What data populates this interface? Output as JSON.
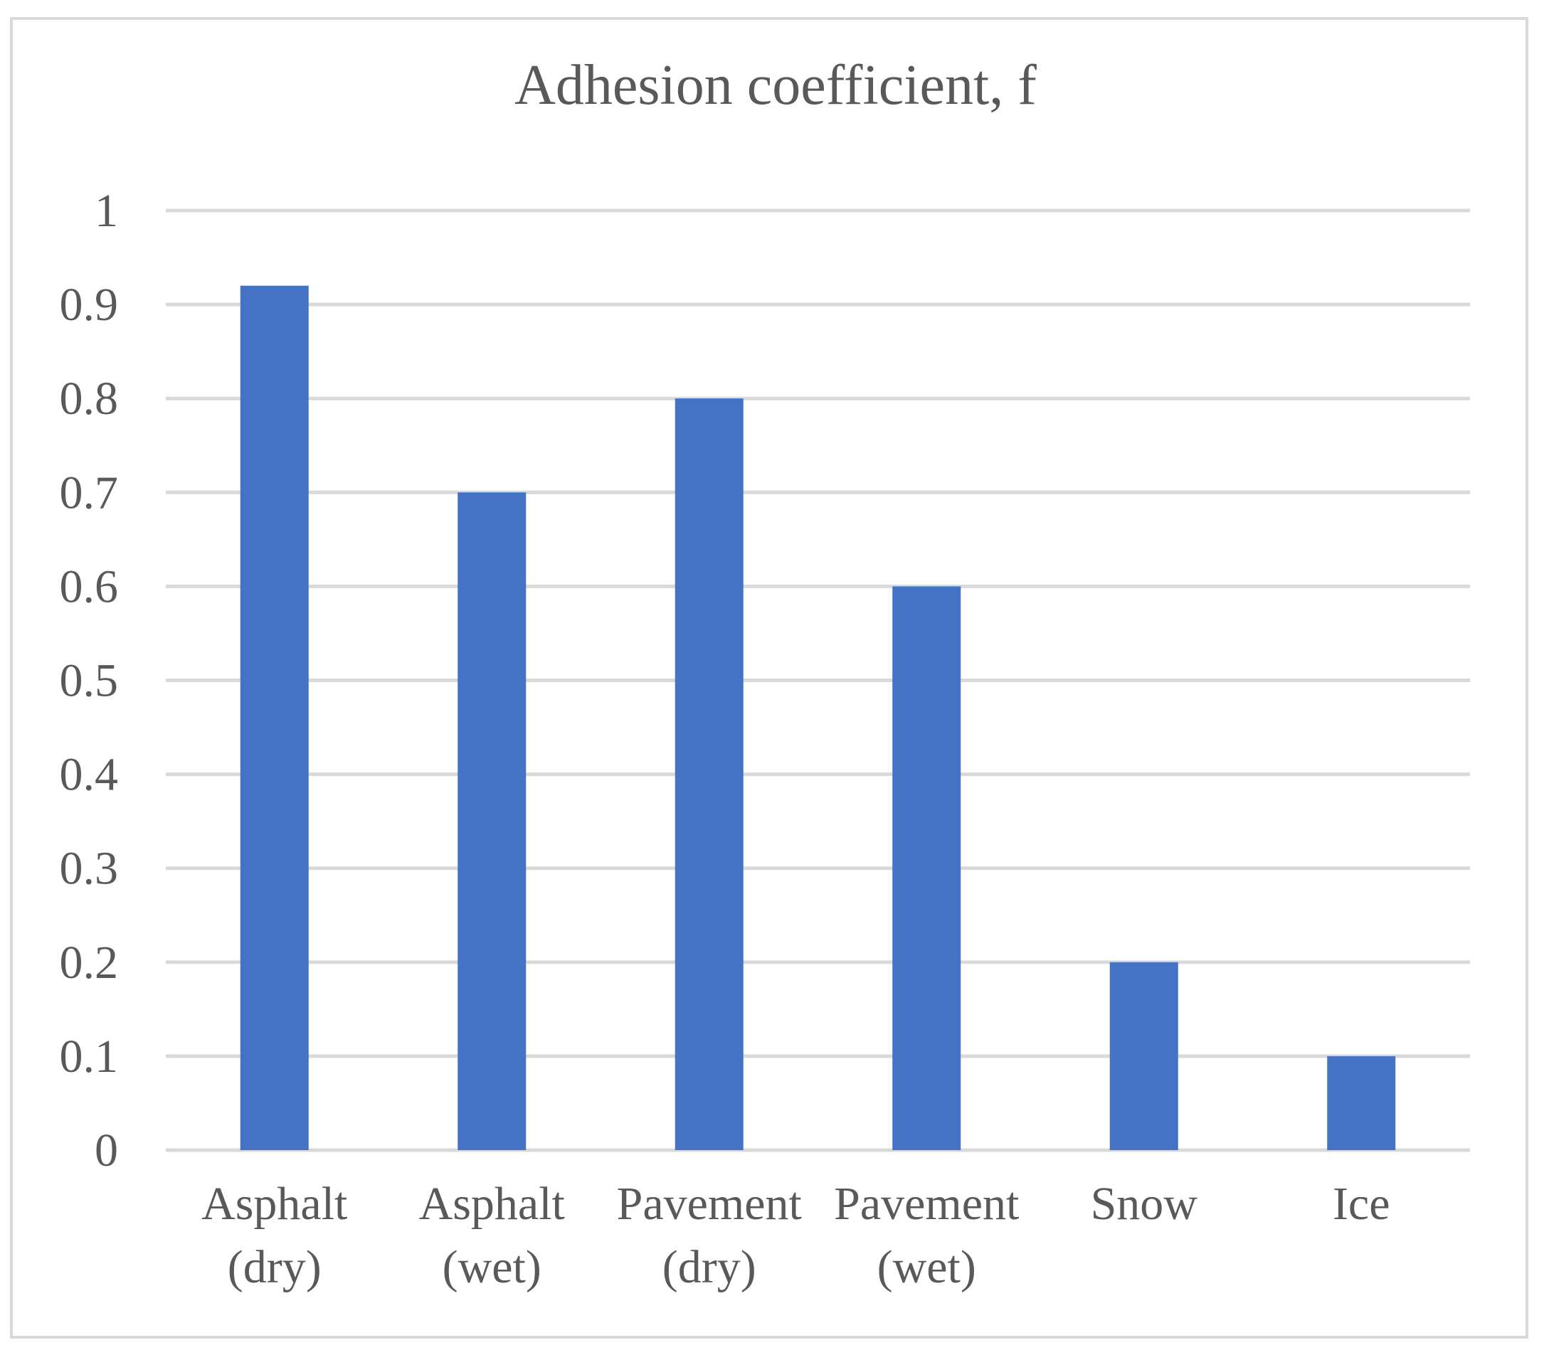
{
  "chart_data": {
    "type": "bar",
    "title": "Adhesion coefficient, f",
    "categories": [
      [
        "Asphalt",
        "(dry)"
      ],
      [
        "Asphalt",
        "(wet)"
      ],
      [
        "Pavement",
        "(dry)"
      ],
      [
        "Pavement",
        "(wet)"
      ],
      [
        "Snow"
      ],
      [
        "Ice"
      ]
    ],
    "values": [
      0.92,
      0.7,
      0.8,
      0.6,
      0.2,
      0.1
    ],
    "ylim": [
      0,
      1
    ],
    "yticks": [
      0,
      0.1,
      0.2,
      0.3,
      0.4,
      0.5,
      0.6,
      0.7,
      0.8,
      0.9,
      1
    ],
    "ytick_labels": [
      "0",
      "0.1",
      "0.2",
      "0.3",
      "0.4",
      "0.5",
      "0.6",
      "0.7",
      "0.8",
      "0.9",
      "1"
    ],
    "grid": true,
    "legend": "none",
    "colors": {
      "bar": "#4472c4",
      "grid": "#d9d9d9",
      "text": "#595959",
      "frame": "#d9d9d9"
    }
  }
}
